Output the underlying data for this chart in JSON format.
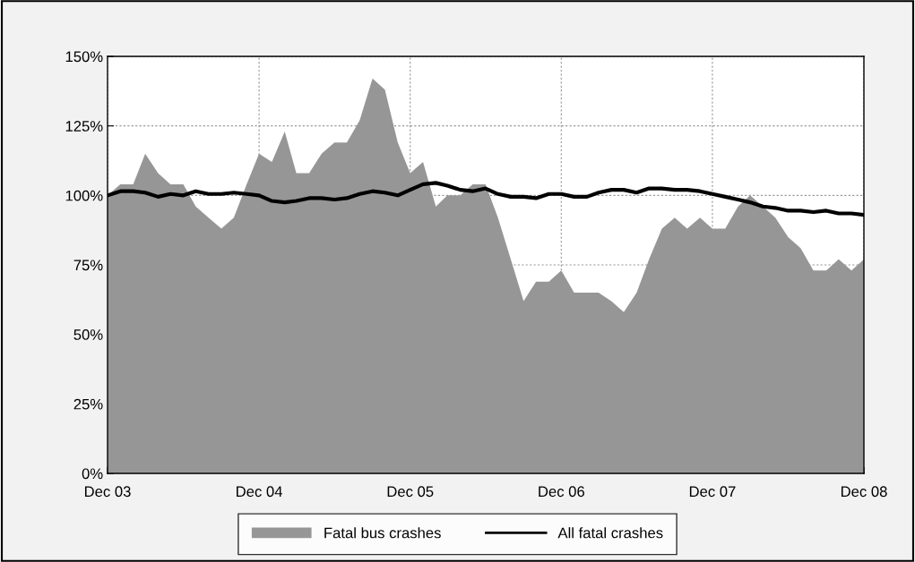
{
  "chart_data": {
    "type": "area",
    "x": [
      "2003-12",
      "2004-01",
      "2004-02",
      "2004-03",
      "2004-04",
      "2004-05",
      "2004-06",
      "2004-07",
      "2004-08",
      "2004-09",
      "2004-10",
      "2004-11",
      "2004-12",
      "2005-01",
      "2005-02",
      "2005-03",
      "2005-04",
      "2005-05",
      "2005-06",
      "2005-07",
      "2005-08",
      "2005-09",
      "2005-10",
      "2005-11",
      "2005-12",
      "2006-01",
      "2006-02",
      "2006-03",
      "2006-04",
      "2006-05",
      "2006-06",
      "2006-07",
      "2006-08",
      "2006-09",
      "2006-10",
      "2006-11",
      "2006-12",
      "2007-01",
      "2007-02",
      "2007-03",
      "2007-04",
      "2007-05",
      "2007-06",
      "2007-07",
      "2007-08",
      "2007-09",
      "2007-10",
      "2007-11",
      "2007-12",
      "2008-01",
      "2008-02",
      "2008-03",
      "2008-04",
      "2008-05",
      "2008-06",
      "2008-07",
      "2008-08",
      "2008-09",
      "2008-10",
      "2008-11",
      "2008-12"
    ],
    "series": [
      {
        "name": "Fatal bus crashes",
        "color": "#969696",
        "values": [
          100,
          104,
          104,
          115,
          108,
          104,
          104,
          96,
          92,
          88,
          92,
          104,
          115,
          112,
          123,
          108,
          108,
          115,
          119,
          119,
          127,
          142,
          138,
          119,
          108,
          112,
          96,
          100,
          100,
          104,
          104,
          92,
          77,
          62,
          69,
          69,
          73,
          65,
          65,
          65,
          62,
          58,
          65,
          77,
          88,
          92,
          88,
          92,
          88,
          88,
          96,
          100,
          96,
          92,
          85,
          81,
          73,
          73,
          77,
          73,
          77
        ]
      },
      {
        "name": "All fatal crashes",
        "type": "line",
        "color": "#000000",
        "values": [
          100,
          101.5,
          101.5,
          101,
          99.5,
          100.5,
          100,
          101.5,
          100.5,
          100.5,
          101,
          100.5,
          100,
          98,
          97.5,
          98,
          99,
          99,
          98.5,
          99,
          100.5,
          101.5,
          101,
          100,
          102,
          104,
          104.5,
          103.5,
          102,
          101.5,
          102.5,
          100.5,
          99.5,
          99.5,
          99,
          100.5,
          100.5,
          99.5,
          99.5,
          101,
          102,
          102,
          101,
          102.5,
          102.5,
          102,
          102,
          101.5,
          100.5,
          99.5,
          98.5,
          97.5,
          96,
          95.5,
          94.5,
          94.5,
          94,
          94.5,
          93.5,
          93.5,
          93
        ]
      }
    ],
    "xlim": [
      "2003-12",
      "2008-12"
    ],
    "xticks": [
      {
        "value": "2003-12",
        "label": "Dec 03"
      },
      {
        "value": "2004-12",
        "label": "Dec 04"
      },
      {
        "value": "2005-12",
        "label": "Dec 05"
      },
      {
        "value": "2006-12",
        "label": "Dec 06"
      },
      {
        "value": "2007-12",
        "label": "Dec 07"
      },
      {
        "value": "2008-12",
        "label": "Dec 08"
      }
    ],
    "ylim": [
      0,
      150
    ],
    "yticks": [
      {
        "value": 0,
        "label": "0%"
      },
      {
        "value": 25,
        "label": "25%"
      },
      {
        "value": 50,
        "label": "50%"
      },
      {
        "value": 75,
        "label": "75%"
      },
      {
        "value": 100,
        "label": "100%"
      },
      {
        "value": 125,
        "label": "125%"
      },
      {
        "value": 150,
        "label": "150%"
      }
    ],
    "grid": true,
    "legend": "bottom"
  }
}
